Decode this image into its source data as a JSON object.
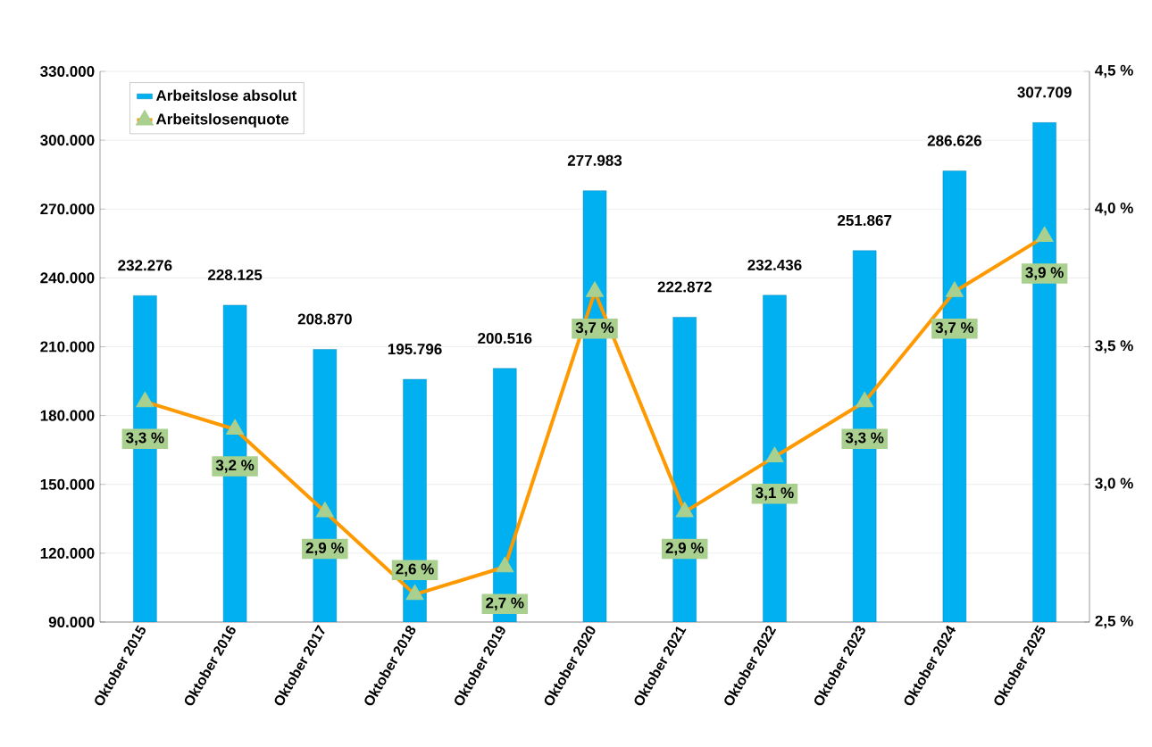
{
  "chart_data": {
    "type": "bar",
    "categories": [
      "Oktober 2015",
      "Oktober 2016",
      "Oktober 2017",
      "Oktober 2018",
      "Oktober 2019",
      "Oktober 2020",
      "Oktober 2021",
      "Oktober 2022",
      "Oktober 2023",
      "Oktober 2024",
      "Oktober 2025"
    ],
    "series": [
      {
        "name": "Arbeitslose absolut",
        "color": "#00b0f0",
        "values": [
          232276,
          228125,
          208870,
          195796,
          200516,
          277983,
          222872,
          232436,
          251867,
          286626,
          307709
        ],
        "value_labels": [
          "232.276",
          "228.125",
          "208.870",
          "195.796",
          "200.516",
          "277.983",
          "222.872",
          "232.436",
          "251.867",
          "286.626",
          "307.709"
        ]
      },
      {
        "name": "Arbeitslosenquote",
        "type": "line",
        "axis": "y2",
        "color": "#ff9900",
        "marker": "triangle",
        "values": [
          3.3,
          3.2,
          2.9,
          2.6,
          2.7,
          3.7,
          2.9,
          3.1,
          3.3,
          3.7,
          3.9
        ],
        "value_labels": [
          "3,3 %",
          "3,2 %",
          "2,9 %",
          "2,6 %",
          "2,7 %",
          "3,7 %",
          "2,9 %",
          "3,1 %",
          "3,3 %",
          "3,7 %",
          "3,9 %"
        ]
      }
    ],
    "ylim": [
      90000,
      330000
    ],
    "yticks": [
      {
        "value": 90000,
        "label": "90.000"
      },
      {
        "value": 120000,
        "label": "120.000"
      },
      {
        "value": 150000,
        "label": "150.000"
      },
      {
        "value": 180000,
        "label": "180.000"
      },
      {
        "value": 210000,
        "label": "210.000"
      },
      {
        "value": 240000,
        "label": "240.000"
      },
      {
        "value": 270000,
        "label": "270.000"
      },
      {
        "value": 300000,
        "label": "300.000"
      },
      {
        "value": 330000,
        "label": "330.000"
      }
    ],
    "y2lim": [
      2.5,
      4.5
    ],
    "y2ticks": [
      {
        "value": 2.5,
        "label": "2,5 %"
      },
      {
        "value": 3.0,
        "label": "3,0 %"
      },
      {
        "value": 3.5,
        "label": "3,5 %"
      },
      {
        "value": 4.0,
        "label": "4,0 %"
      },
      {
        "value": 4.5,
        "label": "4,5 %"
      }
    ],
    "grid": "y",
    "legend": "top left"
  }
}
